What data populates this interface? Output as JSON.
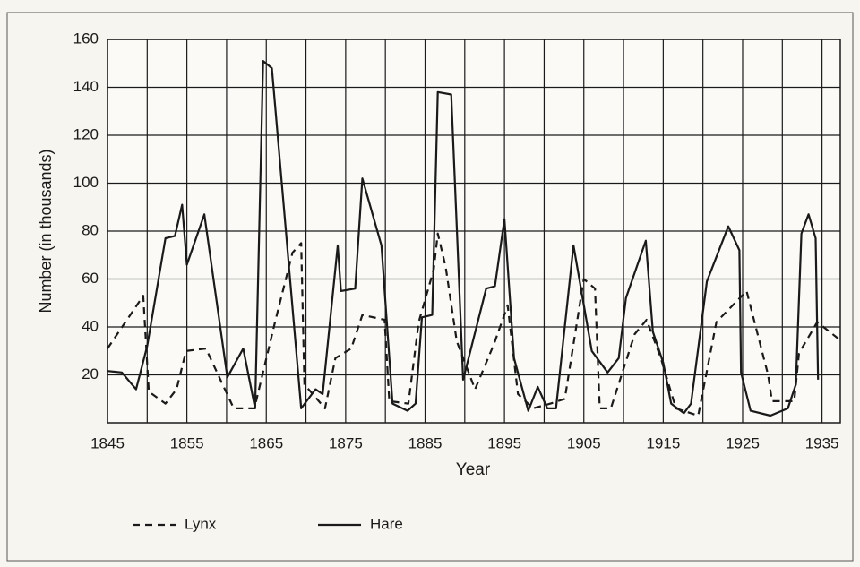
{
  "chart_data": {
    "type": "line",
    "xlabel": "Year",
    "ylabel": "Number (in thousands)",
    "xlim": [
      1845,
      1937.3
    ],
    "ylim": [
      0,
      160
    ],
    "xticks": [
      1845,
      1855,
      1865,
      1875,
      1885,
      1895,
      1905,
      1915,
      1925,
      1935
    ],
    "xgrid": [
      1850,
      1860,
      1870,
      1880,
      1890,
      1900,
      1910,
      1920,
      1930
    ],
    "yticks": [
      20,
      40,
      60,
      80,
      100,
      120,
      140,
      160
    ],
    "grid": true,
    "series": [
      {
        "name": "Lynx",
        "color": "#1a1a1a",
        "dash": true,
        "x": [
          1845,
          1849.5,
          1850.2,
          1852.3,
          1853.7,
          1854.9,
          1857.4,
          1860.9,
          1863.5,
          1866.1,
          1868.3,
          1869.4,
          1869.8,
          1872.4,
          1873.7,
          1875.7,
          1877.1,
          1879.9,
          1880.5,
          1882.9,
          1884.2,
          1886.1,
          1886.6,
          1887.6,
          1889,
          1891.3,
          1893.7,
          1895.4,
          1896.7,
          1898.6,
          1900.8,
          1902.6,
          1905,
          1906.4,
          1907,
          1908.4,
          1911.4,
          1912.9,
          1914.7,
          1916.6,
          1919.4,
          1921.7,
          1925.5,
          1928.2,
          1928.7,
          1931.5,
          1932.1,
          1934.4,
          1937.1
        ],
        "values": [
          31,
          53,
          13,
          8,
          14,
          30,
          31,
          6,
          6,
          42,
          71,
          75,
          16,
          6,
          27,
          31,
          45,
          43,
          9,
          8,
          42,
          64,
          79,
          65,
          34,
          14,
          33,
          49,
          12,
          6,
          8,
          10,
          60,
          56,
          6,
          6,
          37,
          43,
          27,
          6,
          3,
          42,
          55,
          20,
          9,
          9,
          29,
          42,
          35
        ]
      },
      {
        "name": "Hare",
        "color": "#1a1a1a",
        "dash": false,
        "x": [
          1845,
          1846.8,
          1848.6,
          1850,
          1852.3,
          1853.5,
          1854.4,
          1855,
          1857.2,
          1860.1,
          1862.1,
          1863.6,
          1864.6,
          1865.7,
          1869.4,
          1871.2,
          1872.1,
          1874,
          1874.4,
          1876.2,
          1877.1,
          1879.5,
          1880.9,
          1882.8,
          1883.8,
          1884.6,
          1885.9,
          1886.6,
          1888.3,
          1889.8,
          1892.7,
          1893.8,
          1895,
          1896.2,
          1898,
          1899.2,
          1900.4,
          1901.5,
          1903.7,
          1906,
          1908,
          1909.4,
          1910.3,
          1912.8,
          1913.7,
          1915,
          1916,
          1917.6,
          1918.5,
          1920.5,
          1923.2,
          1924.6,
          1924.8,
          1926,
          1928.5,
          1930.7,
          1931.7,
          1932.4,
          1933.3,
          1934.2,
          1934.5
        ],
        "values": [
          21.6,
          21,
          14,
          32,
          77,
          78,
          91,
          66,
          87,
          19,
          31,
          6,
          151,
          148,
          6,
          14,
          12,
          74,
          55,
          56,
          102,
          74,
          8,
          5,
          8,
          44,
          45,
          138,
          137,
          18,
          56,
          57,
          85,
          27,
          5,
          15,
          6,
          6,
          74,
          30,
          21,
          27,
          52,
          76,
          38,
          25,
          8,
          4,
          8,
          59,
          82,
          72,
          21,
          5,
          3,
          6,
          16,
          79,
          87,
          77,
          18
        ]
      }
    ]
  }
}
